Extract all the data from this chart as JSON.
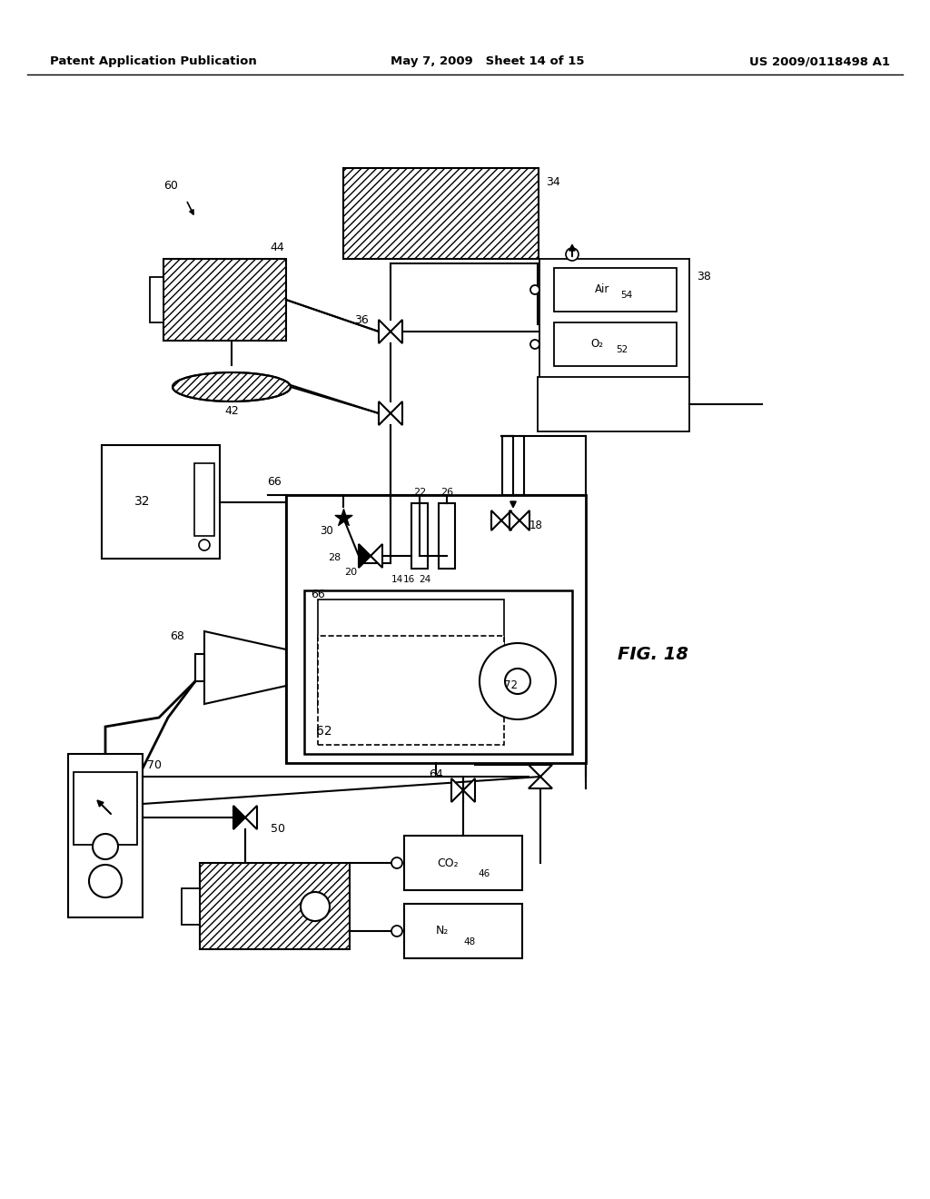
{
  "header_left": "Patent Application Publication",
  "header_center": "May 7, 2009   Sheet 14 of 15",
  "header_right": "US 2009/0118498 A1",
  "fig_label": "FIG. 18",
  "bg_color": "#ffffff"
}
